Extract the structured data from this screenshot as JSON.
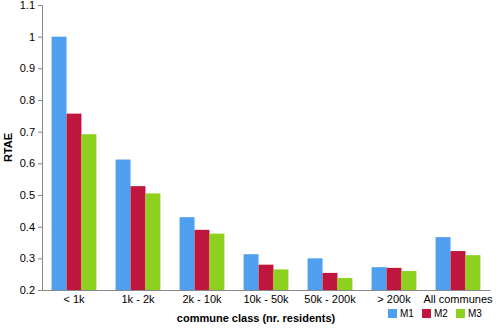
{
  "chart_data": {
    "type": "bar",
    "y_label": "RTAE",
    "x_label": "commune class (nr. residents)",
    "categories": [
      "< 1k",
      "1k - 2k",
      "2k - 10k",
      "10k - 50k",
      "50k - 200k",
      "> 200k",
      "All communes"
    ],
    "series": [
      {
        "name": "M1",
        "color": "#4f9ff0",
        "values": [
          1.0,
          0.612,
          0.43,
          0.313,
          0.3,
          0.272,
          0.367
        ]
      },
      {
        "name": "M2",
        "color": "#c0163d",
        "values": [
          0.757,
          0.528,
          0.39,
          0.28,
          0.254,
          0.27,
          0.323
        ]
      },
      {
        "name": "M3",
        "color": "#8dd11e",
        "values": [
          0.692,
          0.505,
          0.378,
          0.265,
          0.238,
          0.26,
          0.31
        ]
      }
    ],
    "ylim": [
      0.2,
      1.1
    ],
    "yticks": [
      0.2,
      0.3,
      0.4,
      0.5,
      0.6,
      0.7,
      0.8,
      0.9,
      1,
      1.1
    ],
    "grid": false,
    "legend": "bottom-right"
  }
}
